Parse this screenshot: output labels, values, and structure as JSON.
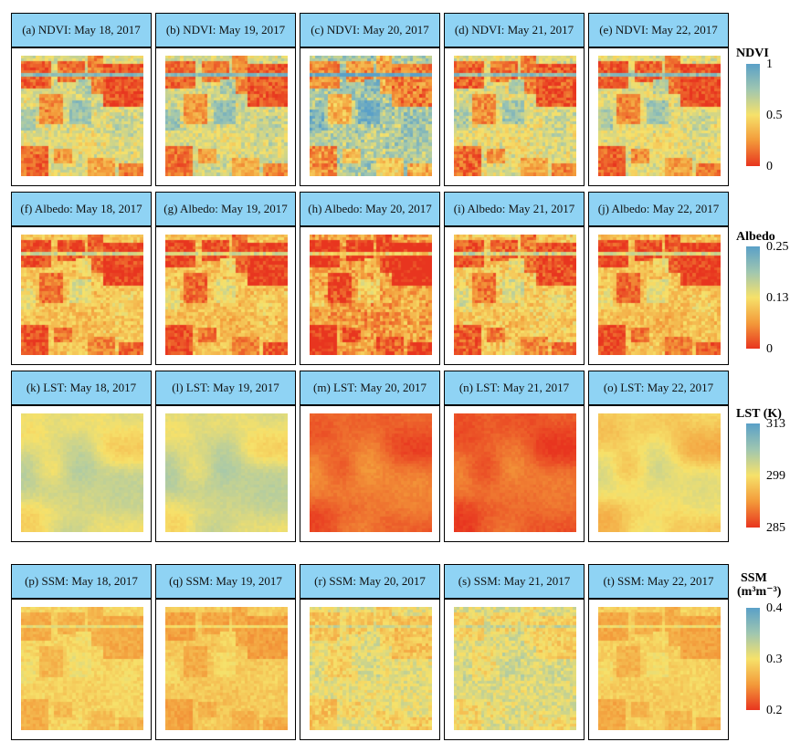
{
  "rows": [
    {
      "titles": [
        "(a) NDVI: May 18, 2017",
        "(b) NDVI: May 19, 2017",
        "(c) NDVI: May 20, 2017",
        "(d) NDVI: May 21, 2017",
        "(e) NDVI: May 22, 2017"
      ],
      "colorbar": {
        "title": "NDVI",
        "subtitle": "",
        "ticks": [
          "1",
          "0.5",
          "0"
        ]
      },
      "palette": [
        "#e8351f",
        "#f39a3a",
        "#f6e16a",
        "#9fc6b0",
        "#5aa0c8"
      ],
      "panels": [
        {
          "bias": -0.05,
          "spread": 1.0,
          "blur": 0,
          "noise": 0.2
        },
        {
          "bias": -0.03,
          "spread": 1.0,
          "blur": 0,
          "noise": 0.2
        },
        {
          "bias": 0.08,
          "spread": 1.05,
          "blur": 0,
          "noise": 0.3
        },
        {
          "bias": -0.06,
          "spread": 0.95,
          "blur": 0,
          "noise": 0.25
        },
        {
          "bias": -0.07,
          "spread": 1.0,
          "blur": 0,
          "noise": 0.2
        }
      ]
    },
    {
      "titles": [
        "(f) Albedo: May 18, 2017",
        "(g) Albedo: May 19, 2017",
        "(h) Albedo: May 20, 2017",
        "(i) Albedo: May 21, 2017",
        "(j) Albedo: May 22, 2017"
      ],
      "colorbar": {
        "title": "Albedo",
        "subtitle": "",
        "ticks": [
          "0.25",
          "0.13",
          "0"
        ]
      },
      "palette": [
        "#e8351f",
        "#f39a3a",
        "#f6e16a",
        "#9fc6b0",
        "#5aa0c8"
      ],
      "panels": [
        {
          "bias": -0.18,
          "spread": 0.75,
          "blur": 0,
          "noise": 0.2
        },
        {
          "bias": -0.2,
          "spread": 0.75,
          "blur": 0,
          "noise": 0.2
        },
        {
          "bias": -0.3,
          "spread": 0.7,
          "blur": 0,
          "noise": 0.3
        },
        {
          "bias": -0.16,
          "spread": 0.75,
          "blur": 0,
          "noise": 0.25
        },
        {
          "bias": -0.2,
          "spread": 0.75,
          "blur": 0,
          "noise": 0.2
        }
      ]
    },
    {
      "titles": [
        "(k) LST: May 18, 2017",
        "(l) LST: May 19, 2017",
        "(m) LST: May 20, 2017",
        "(n) LST: May 21, 2017",
        "(o) LST: May 22, 2017"
      ],
      "colorbar": {
        "title": "LST (K)",
        "subtitle": "",
        "ticks": [
          "313",
          "299",
          "285"
        ]
      },
      "palette": [
        "#e8351f",
        "#f39a3a",
        "#f6e16a",
        "#9fc6b0",
        "#5aa0c8"
      ],
      "panels": [
        {
          "bias": 0.08,
          "spread": 0.45,
          "blur": 1,
          "noise": 0.05
        },
        {
          "bias": 0.1,
          "spread": 0.45,
          "blur": 1,
          "noise": 0.05
        },
        {
          "bias": -0.35,
          "spread": 0.35,
          "blur": 1,
          "noise": 0.05
        },
        {
          "bias": -0.38,
          "spread": 0.35,
          "blur": 1,
          "noise": 0.05
        },
        {
          "bias": -0.02,
          "spread": 0.5,
          "blur": 1,
          "noise": 0.05
        }
      ]
    },
    {
      "titles": [
        "(p) SSM: May 18, 2017",
        "(q) SSM: May 19, 2017",
        "(r) SSM: May 20, 2017",
        "(s) SSM: May 21, 2017",
        "(t) SSM: May 22, 2017"
      ],
      "colorbar": {
        "title": "SSM",
        "subtitle": "(m³m⁻³)",
        "ticks": [
          "0.4",
          "0.3",
          "0.2"
        ]
      },
      "palette": [
        "#e8351f",
        "#f39a3a",
        "#f6e16a",
        "#9fc6b0",
        "#5aa0c8"
      ],
      "panels": [
        {
          "bias": -0.08,
          "spread": 0.3,
          "blur": 0,
          "noise": 0.1
        },
        {
          "bias": -0.12,
          "spread": 0.3,
          "blur": 0,
          "noise": 0.1
        },
        {
          "bias": 0.0,
          "spread": 0.3,
          "blur": 0,
          "noise": 0.2
        },
        {
          "bias": 0.04,
          "spread": 0.25,
          "blur": 0,
          "noise": 0.2
        },
        {
          "bias": -0.1,
          "spread": 0.3,
          "blur": 0,
          "noise": 0.1
        }
      ]
    }
  ]
}
